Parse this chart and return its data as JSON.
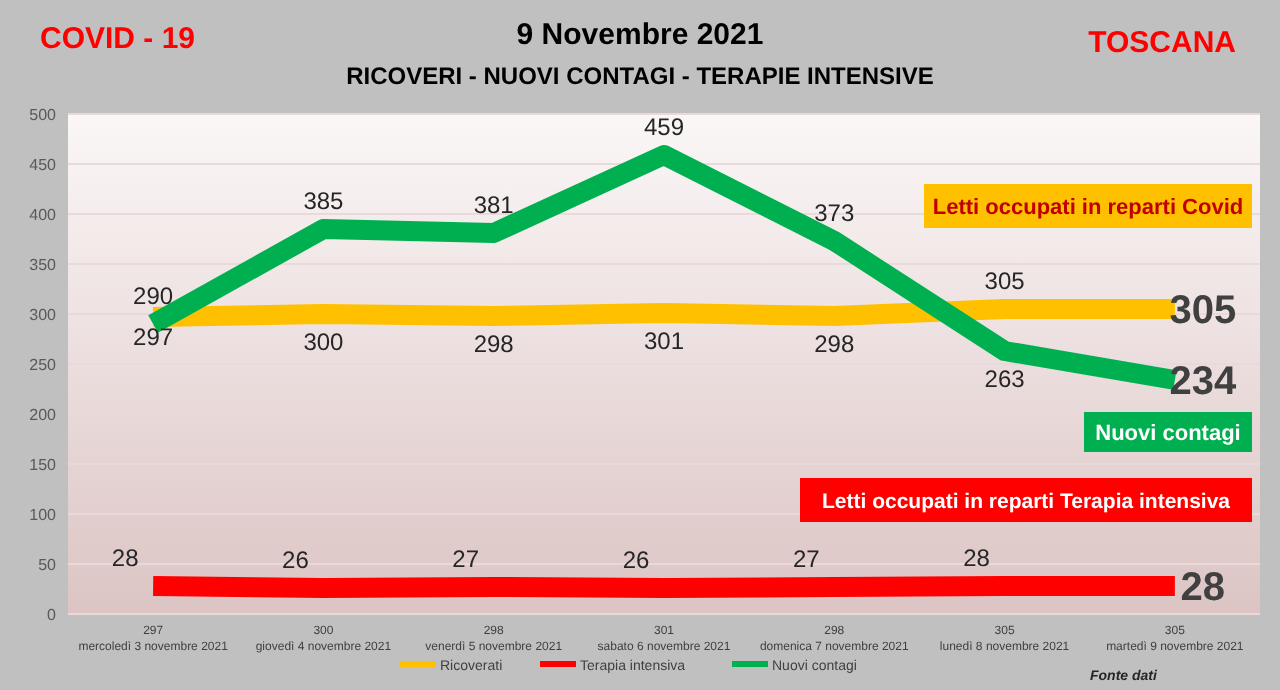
{
  "chart_data": {
    "type": "line",
    "title": "9 Novembre 2021",
    "subtitle": "RICOVERI - NUOVI CONTAGI - TERAPIE INTENSIVE",
    "categories": [
      "297\nmercoledì 3 novembre 2021",
      "300\ngiovedì 4 novembre 2021",
      "298\nvenerdì 5 novembre 2021",
      "301\nsabato 6 novembre 2021",
      "298\ndomenica 7 novembre 2021",
      "305\nlunedì 8 novembre 2021",
      "305\nmartedì 9 novembre 2021"
    ],
    "series": [
      {
        "name": "Ricoverati",
        "color": "#ffc000",
        "values": [
          297,
          300,
          298,
          301,
          298,
          305,
          305
        ]
      },
      {
        "name": "Terapia intensiva",
        "color": "#ff0000",
        "values": [
          28,
          26,
          27,
          26,
          27,
          28,
          28
        ]
      },
      {
        "name": "Nuovi contagi",
        "color": "#00b050",
        "values": [
          290,
          385,
          381,
          459,
          373,
          263,
          234
        ]
      }
    ],
    "ylim": [
      0,
      500
    ],
    "yticks": [
      0,
      50,
      100,
      150,
      200,
      250,
      300,
      350,
      400,
      450,
      500
    ],
    "grid": "y",
    "legend": "bottom",
    "data_labels": true,
    "marker": "none",
    "line_style": "solid",
    "annotations": [
      "Letti occupati in reparti Covid",
      "Nuovi contagi",
      "Letti occupati in reparti Terapia intensiva",
      "COVID - 19",
      "TOSCANA",
      "Fonte dati"
    ]
  }
}
